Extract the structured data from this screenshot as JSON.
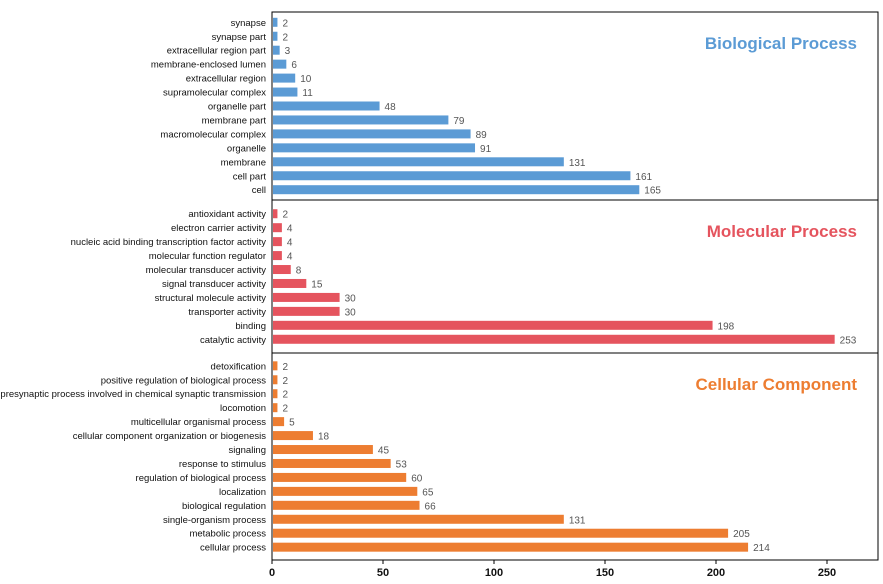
{
  "chart_data": {
    "type": "bar",
    "orientation": "horizontal",
    "xlim": [
      0,
      260
    ],
    "xticks": [
      "0",
      "50",
      "100",
      "150",
      "200",
      "250"
    ],
    "panels": [
      {
        "title": "Biological Process",
        "color": "#5b9bd5",
        "categories": [
          "synapse",
          "synapse part",
          "extracellular region part",
          "membrane-enclosed lumen",
          "extracellular region",
          "supramolecular complex",
          "organelle part",
          "membrane part",
          "macromolecular complex",
          "organelle",
          "membrane",
          "cell part",
          "cell"
        ],
        "values": [
          2,
          2,
          3,
          6,
          10,
          11,
          48,
          79,
          89,
          91,
          131,
          161,
          165
        ]
      },
      {
        "title": "Molecular Process",
        "color": "#e5545e",
        "categories": [
          "antioxidant activity",
          "electron carrier activity",
          "nucleic acid binding transcription factor activity",
          "molecular function regulator",
          "molecular transducer activity",
          "signal transducer activity",
          "structural molecule activity",
          "transporter activity",
          "binding",
          "catalytic activity"
        ],
        "values": [
          2,
          4,
          4,
          4,
          8,
          15,
          30,
          30,
          198,
          253
        ]
      },
      {
        "title": "Cellular Component",
        "color": "#ed7d31",
        "categories": [
          "detoxification",
          "positive regulation of biological process",
          "presynaptic process involved in chemical synaptic transmission",
          "locomotion",
          "multicellular organismal process",
          "cellular component organization or biogenesis",
          "signaling",
          "response to stimulus",
          "regulation of biological process",
          "localization",
          "biological regulation",
          "single-organism process",
          "metabolic process",
          "cellular process"
        ],
        "values": [
          2,
          2,
          2,
          2,
          5,
          18,
          45,
          53,
          60,
          65,
          66,
          131,
          205,
          214
        ]
      }
    ]
  }
}
